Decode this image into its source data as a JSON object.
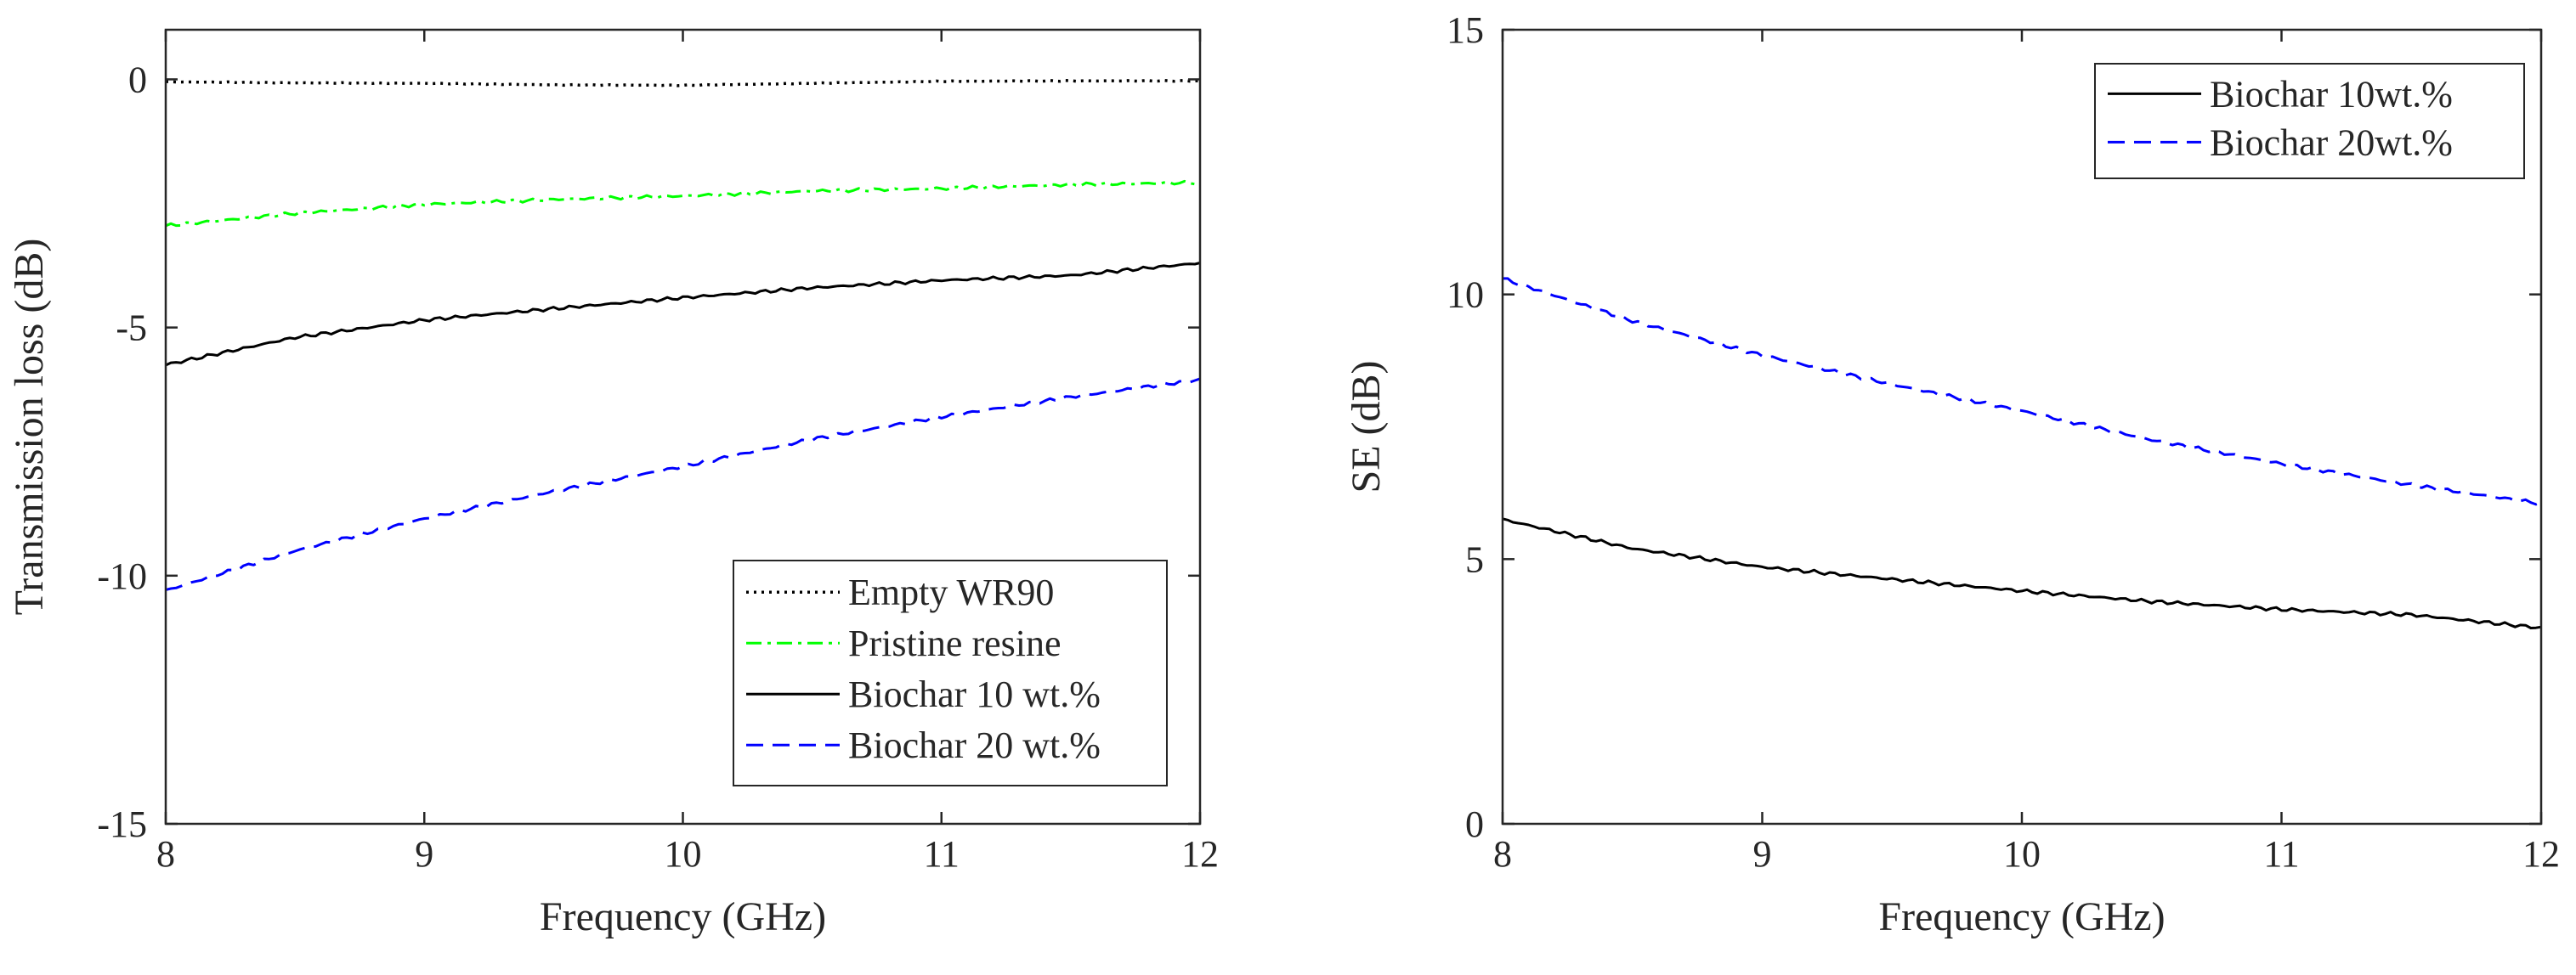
{
  "chart_data": [
    {
      "type": "line",
      "title": "",
      "xlabel": "Frequency (GHz)",
      "ylabel": "Transmission loss (dB)",
      "xlim": [
        8,
        12
      ],
      "ylim": [
        -15,
        1
      ],
      "xticks": [
        "8",
        "9",
        "10",
        "11",
        "12"
      ],
      "yticks": [
        "-15",
        "-10",
        "-5",
        "0"
      ],
      "grid": false,
      "legend_position": "bottom-right",
      "series": [
        {
          "name": "Empty WR90",
          "color": "#000000",
          "style": "dotted",
          "x": [
            8,
            8.5,
            9,
            9.5,
            10,
            10.5,
            11,
            11.5,
            12
          ],
          "y": [
            -0.05,
            -0.07,
            -0.08,
            -0.11,
            -0.12,
            -0.08,
            -0.04,
            -0.03,
            -0.03
          ]
        },
        {
          "name": "Pristine resine",
          "color": "#00ff00",
          "style": "dashdot",
          "x": [
            8,
            8.5,
            9,
            9.5,
            10,
            10.5,
            11,
            11.5,
            12
          ],
          "y": [
            -2.95,
            -2.7,
            -2.52,
            -2.42,
            -2.35,
            -2.25,
            -2.2,
            -2.12,
            -2.08
          ]
        },
        {
          "name": "Biochar 10 wt.%",
          "color": "#000000",
          "style": "solid",
          "x": [
            8,
            8.5,
            9,
            9.5,
            10,
            10.5,
            11,
            11.5,
            12
          ],
          "y": [
            -5.75,
            -5.2,
            -4.85,
            -4.62,
            -4.4,
            -4.2,
            -4.05,
            -3.95,
            -3.7
          ]
        },
        {
          "name": "Biochar 20 wt.%",
          "color": "#0000ff",
          "style": "dashed",
          "x": [
            8,
            8.5,
            9,
            9.5,
            10,
            10.5,
            11,
            11.5,
            12
          ],
          "y": [
            -10.3,
            -9.5,
            -8.85,
            -8.3,
            -7.8,
            -7.25,
            -6.8,
            -6.4,
            -6.05
          ]
        }
      ]
    },
    {
      "type": "line",
      "title": "",
      "xlabel": "Frequency (GHz)",
      "ylabel": "SE (dB)",
      "xlim": [
        8,
        12
      ],
      "ylim": [
        0,
        15
      ],
      "xticks": [
        "8",
        "9",
        "10",
        "11",
        "12"
      ],
      "yticks": [
        "0",
        "5",
        "10",
        "15"
      ],
      "grid": false,
      "legend_position": "top-right",
      "series": [
        {
          "name": "Biochar 10wt.%",
          "color": "#000000",
          "style": "solid",
          "x": [
            8,
            8.5,
            9,
            9.5,
            10,
            10.5,
            11,
            11.5,
            12
          ],
          "y": [
            5.75,
            5.2,
            4.85,
            4.62,
            4.4,
            4.2,
            4.05,
            3.95,
            3.7
          ]
        },
        {
          "name": "Biochar 20wt.%",
          "color": "#0000ff",
          "style": "dashed",
          "x": [
            8,
            8.5,
            9,
            9.5,
            10,
            10.5,
            11,
            11.5,
            12
          ],
          "y": [
            10.3,
            9.5,
            8.85,
            8.3,
            7.8,
            7.25,
            6.8,
            6.4,
            6.05
          ]
        }
      ]
    }
  ]
}
